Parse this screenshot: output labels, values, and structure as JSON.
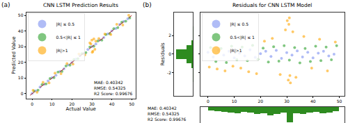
{
  "chart_data": [
    {
      "type": "scatter",
      "label": "(a)",
      "title": "CNN LSTM Prediction Results",
      "x_label": "Actual Value",
      "y_label": "Predicted Value",
      "xlim": [
        -3,
        52
      ],
      "ylim": [
        -3,
        52
      ],
      "xticks": [
        0,
        10,
        20,
        30,
        40,
        50
      ],
      "yticks": [
        0,
        10,
        20,
        30,
        40,
        50
      ],
      "grid": false,
      "legend": "upper left",
      "annotation": [
        "MAE: 0.40342",
        "RMSE: 0.54325",
        "R2 Score: 0.99676"
      ],
      "series": [
        {
          "name": "|R| ≤ 0.5",
          "color": "#7b8ff0",
          "marker": "circle",
          "x": [
            0,
            2,
            4,
            6,
            8,
            10,
            12,
            14,
            16,
            18,
            20,
            22,
            24,
            26,
            28,
            30,
            32,
            34,
            36,
            38,
            40,
            42,
            44,
            46,
            48
          ],
          "values": [
            0.2,
            1.8,
            4.3,
            5.9,
            8.1,
            10.3,
            11.8,
            14.2,
            15.9,
            18.3,
            19.8,
            22.1,
            24.4,
            25.7,
            28.2,
            30.1,
            31.8,
            34.3,
            35.9,
            38.2,
            40.1,
            41.7,
            44.3,
            46.2,
            47.9
          ]
        },
        {
          "name": "0.5<|R| ≤ 1",
          "color": "#2ca02c",
          "marker": "circle",
          "x": [
            1,
            3,
            5,
            7,
            9,
            11,
            13,
            15,
            17,
            19,
            21,
            23,
            25,
            27,
            29,
            31,
            33,
            35,
            37,
            39,
            41,
            43,
            45,
            47,
            49
          ],
          "values": [
            1.7,
            2.3,
            5.8,
            6.3,
            9.7,
            10.2,
            13.8,
            14.3,
            17.7,
            18.2,
            21.8,
            22.3,
            25.6,
            26.2,
            29.8,
            30.3,
            33.7,
            34.2,
            37.8,
            38.3,
            41.6,
            42.2,
            45.7,
            46.3,
            48.4
          ]
        },
        {
          "name": "|R|>1",
          "color": "#ffa500",
          "marker": "circle",
          "x": [
            0.5,
            2.5,
            5.5,
            8.5,
            11.5,
            14.5,
            17.5,
            20.5,
            23.5,
            26.5,
            29,
            30,
            30.5,
            31,
            31.5,
            32,
            33.5,
            36.5,
            39.5,
            42.5,
            45.5,
            48.5,
            30.2,
            29.5
          ],
          "values": [
            2.1,
            0.9,
            7.2,
            6.9,
            13.1,
            12.8,
            19.2,
            18.9,
            25.3,
            24.8,
            32.5,
            34.2,
            27.1,
            35,
            28.3,
            33.6,
            35.2,
            38.1,
            37.8,
            44.3,
            43.9,
            50.1,
            26.4,
            31.8
          ]
        },
        {
          "type": "line",
          "color": "#b22222",
          "line_style": "dashed",
          "x": [
            -1,
            50
          ],
          "values": [
            -1,
            50
          ]
        }
      ]
    },
    {
      "type": "scatter",
      "label": "(b)",
      "title": "Residuals for CNN LSTM Model",
      "y_label": "Residuals",
      "xlim": [
        -3,
        52
      ],
      "ylim": [
        -4.5,
        4.5
      ],
      "xticks": [
        0,
        10,
        20,
        30,
        40,
        50
      ],
      "yticks": [
        -2,
        0,
        2
      ],
      "grid": false,
      "legend": "upper left",
      "annotation": [
        "MAE: 0.40342",
        "RMSE: 0.54325",
        "R2 Score: 0.99676"
      ],
      "series": [
        {
          "name": "|R| ≤ 0.5",
          "color": "#7b8ff0",
          "marker": "circle",
          "x": [
            0,
            2,
            4,
            6,
            8,
            10,
            12,
            14,
            16,
            18,
            20,
            22,
            24,
            26,
            28,
            30,
            32,
            34,
            36,
            38,
            40,
            42,
            44,
            46,
            48
          ],
          "values": [
            0.2,
            -0.3,
            0.4,
            -0.1,
            0.3,
            -0.4,
            0.1,
            -0.2,
            0.45,
            -0.35,
            0.05,
            0.3,
            -0.25,
            0.4,
            -0.45,
            0.15,
            -0.1,
            0.35,
            -0.3,
            0.2,
            -0.4,
            0.1,
            0.3,
            -0.2,
            0.0
          ]
        },
        {
          "name": "0.5<|R| ≤ 1",
          "color": "#2ca02c",
          "marker": "circle",
          "x": [
            1,
            3,
            5,
            7,
            9,
            11,
            13,
            15,
            17,
            19,
            21,
            23,
            25,
            27,
            29,
            31,
            33,
            35,
            37,
            39,
            41,
            43,
            45,
            47,
            49
          ],
          "values": [
            0.7,
            -0.8,
            0.6,
            -0.9,
            0.85,
            -0.6,
            0.75,
            -0.7,
            0.95,
            -0.55,
            0.65,
            -0.85,
            0.8,
            -0.75,
            0.9,
            -0.65,
            0.7,
            -0.95,
            0.6,
            -0.8,
            0.85,
            -0.7,
            0.75,
            -0.6,
            0.9
          ]
        },
        {
          "name": "|R|>1",
          "color": "#ffa500",
          "marker": "circle",
          "x": [
            0.5,
            3.5,
            6.5,
            9.5,
            12.5,
            15.5,
            18.5,
            21.5,
            24.5,
            27.5,
            29.5,
            30.2,
            30.6,
            31,
            31.4,
            32.3,
            33.5,
            36.5,
            39.5,
            42.5,
            45.5,
            48.5,
            30.8,
            31.2
          ],
          "values": [
            -1.4,
            -1.6,
            -1.8,
            -1.3,
            -1.5,
            -1.9,
            -2.1,
            1.4,
            1.7,
            -2.2,
            2.6,
            3.6,
            -2.8,
            3.9,
            -3.1,
            2.4,
            -2.5,
            1.9,
            -1.5,
            1.6,
            -1.8,
            1.3,
            3.2,
            -2.3
          ]
        }
      ],
      "residual_histogram": {
        "type": "bar",
        "orientation": "horizontal",
        "color": "#2e8b20",
        "bins": [
          -3,
          -2.5,
          -2,
          -1.5,
          -1,
          -0.5,
          0,
          0.5,
          1,
          1.5,
          2,
          2.5,
          3
        ],
        "counts": [
          1,
          2,
          4,
          10,
          40,
          100,
          100,
          40,
          10,
          4,
          2,
          1
        ],
        "xlim": [
          0,
          110
        ]
      },
      "predicted_histogram": {
        "type": "bar",
        "color": "#2e8b20",
        "bins": [
          0,
          2.5,
          5,
          7.5,
          10,
          12.5,
          15,
          17.5,
          20,
          22.5,
          25,
          27.5,
          30,
          32.5,
          35,
          37.5,
          40,
          42.5,
          45,
          47.5,
          50
        ],
        "counts": [
          20,
          25,
          30,
          35,
          40,
          30,
          35,
          45,
          40,
          50,
          45,
          35,
          95,
          40,
          45,
          35,
          30,
          40,
          35,
          25
        ],
        "ylim": [
          0,
          100
        ]
      }
    }
  ]
}
